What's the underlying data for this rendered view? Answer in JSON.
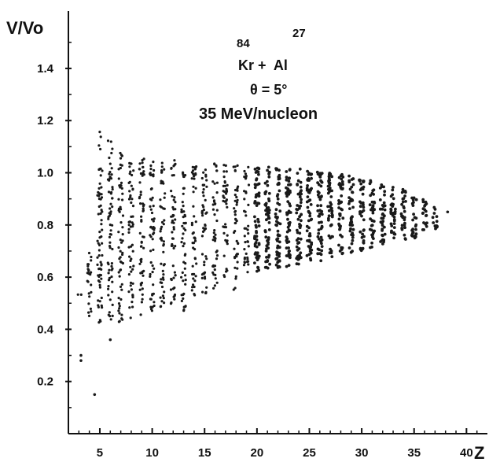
{
  "chart_data": {
    "type": "scatter",
    "title": "",
    "xlabel": "Z",
    "ylabel": "V/Vo",
    "xlim": [
      2,
      42
    ],
    "ylim": [
      0,
      1.62
    ],
    "xticks": [
      5,
      10,
      15,
      20,
      25,
      30,
      35,
      40
    ],
    "yticks": [
      0.2,
      0.4,
      0.6,
      0.8,
      1.0,
      1.2,
      1.4
    ],
    "ytick_labels": [
      "0.2",
      "0.4",
      "0.6",
      "0.8",
      "1.0",
      "1.2",
      "1.4"
    ],
    "grid": false,
    "annotation": {
      "line1_mass_kr": "84",
      "line1_mass_al": "27",
      "line1_reaction": "Kr +  Al",
      "line2": "θ = 5°",
      "line3": "35 MeV/nucleon"
    },
    "envelope": [
      {
        "z": 3,
        "v_min": 0.52,
        "v_max": 0.54
      },
      {
        "z": 4,
        "v_min": 0.42,
        "v_max": 0.7
      },
      {
        "z": 5,
        "v_min": 0.42,
        "v_max": 1.16
      },
      {
        "z": 6,
        "v_min": 0.42,
        "v_max": 1.14
      },
      {
        "z": 7,
        "v_min": 0.42,
        "v_max": 1.08
      },
      {
        "z": 8,
        "v_min": 0.44,
        "v_max": 1.06
      },
      {
        "z": 9,
        "v_min": 0.45,
        "v_max": 1.06
      },
      {
        "z": 10,
        "v_min": 0.47,
        "v_max": 1.06
      },
      {
        "z": 11,
        "v_min": 0.48,
        "v_max": 1.05
      },
      {
        "z": 12,
        "v_min": 0.49,
        "v_max": 1.05
      },
      {
        "z": 13,
        "v_min": 0.47,
        "v_max": 1.04
      },
      {
        "z": 14,
        "v_min": 0.52,
        "v_max": 1.04
      },
      {
        "z": 15,
        "v_min": 0.52,
        "v_max": 1.04
      },
      {
        "z": 16,
        "v_min": 0.55,
        "v_max": 1.04
      },
      {
        "z": 17,
        "v_min": 0.57,
        "v_max": 1.03
      },
      {
        "z": 18,
        "v_min": 0.55,
        "v_max": 1.03
      },
      {
        "z": 19,
        "v_min": 0.6,
        "v_max": 1.03
      },
      {
        "z": 20,
        "v_min": 0.61,
        "v_max": 1.03
      },
      {
        "z": 21,
        "v_min": 0.63,
        "v_max": 1.03
      },
      {
        "z": 22,
        "v_min": 0.63,
        "v_max": 1.02
      },
      {
        "z": 23,
        "v_min": 0.64,
        "v_max": 1.02
      },
      {
        "z": 24,
        "v_min": 0.65,
        "v_max": 1.02
      },
      {
        "z": 25,
        "v_min": 0.66,
        "v_max": 1.01
      },
      {
        "z": 26,
        "v_min": 0.66,
        "v_max": 1.01
      },
      {
        "z": 27,
        "v_min": 0.67,
        "v_max": 1.0
      },
      {
        "z": 28,
        "v_min": 0.68,
        "v_max": 1.0
      },
      {
        "z": 29,
        "v_min": 0.69,
        "v_max": 0.99
      },
      {
        "z": 30,
        "v_min": 0.7,
        "v_max": 0.98
      },
      {
        "z": 31,
        "v_min": 0.71,
        "v_max": 0.97
      },
      {
        "z": 32,
        "v_min": 0.72,
        "v_max": 0.96
      },
      {
        "z": 33,
        "v_min": 0.73,
        "v_max": 0.95
      },
      {
        "z": 34,
        "v_min": 0.74,
        "v_max": 0.94
      },
      {
        "z": 35,
        "v_min": 0.75,
        "v_max": 0.92
      },
      {
        "z": 36,
        "v_min": 0.77,
        "v_max": 0.9
      },
      {
        "z": 37,
        "v_min": 0.78,
        "v_max": 0.87
      }
    ],
    "isolated_points": [
      {
        "z": 3.2,
        "v": 0.28
      },
      {
        "z": 3.2,
        "v": 0.3
      },
      {
        "z": 4.5,
        "v": 0.15
      },
      {
        "z": 6.0,
        "v": 0.36
      },
      {
        "z": 38.2,
        "v": 0.85
      }
    ]
  }
}
